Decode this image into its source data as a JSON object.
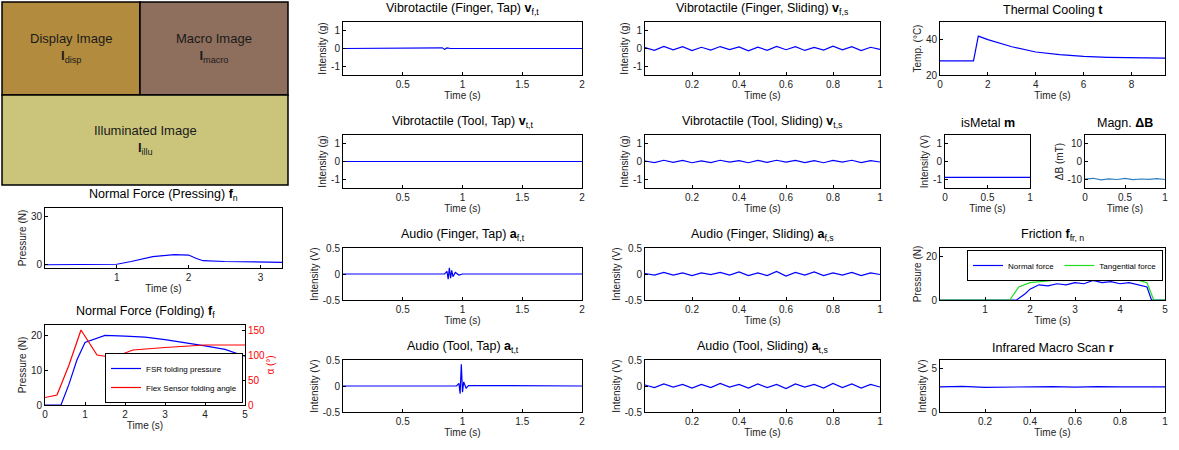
{
  "images": [
    {
      "label": "Display Image",
      "symbol": "I",
      "subscript": "disp",
      "color": "#b38b3e"
    },
    {
      "label": "Macro Image",
      "symbol": "I",
      "subscript": "macro",
      "color": "#8e6e5c"
    },
    {
      "label": "Illuminated Image",
      "symbol": "I",
      "subscript": "illu",
      "color": "#cbc57c"
    }
  ],
  "chart_data": [
    {
      "type": "line",
      "title": "Normal Force (Pressing)",
      "symbol": "f",
      "subscript": "n",
      "x_label": "Time (s)",
      "y_label": "Pressure (N)",
      "xlim": [
        0,
        3.3
      ],
      "xticks": [
        1,
        2,
        3
      ],
      "ylim": [
        -2,
        35
      ],
      "yticks": [
        0,
        30
      ],
      "series": [
        {
          "color": "#0000ff",
          "x": [
            0,
            1,
            1.2,
            1.5,
            1.8,
            2.0,
            2.1,
            2.2,
            2.5,
            3.3
          ],
          "values": [
            0,
            0.3,
            2,
            5,
            6.2,
            6,
            4,
            2.5,
            2,
            1.5
          ]
        }
      ]
    },
    {
      "type": "line",
      "title": "Normal Force (Folding)",
      "symbol": "f",
      "subscript": "f",
      "x_label": "Time (s)",
      "y_label": "Pressure (N)",
      "y2_label": "α (°)",
      "xlim": [
        0,
        5
      ],
      "xticks": [
        0,
        1,
        2,
        3,
        4,
        5
      ],
      "ylim": [
        0,
        23
      ],
      "yticks": [
        0,
        10,
        20
      ],
      "y2lim": [
        0,
        160
      ],
      "y2ticks": [
        0,
        50,
        100,
        150
      ],
      "legend": "bottom right",
      "series": [
        {
          "name": "FSR folding pressure",
          "color": "#0000ff",
          "x": [
            0,
            0.4,
            0.6,
            0.8,
            1.0,
            1.5,
            2.0,
            2.5,
            3.0,
            3.5,
            4.0,
            4.5,
            5.0
          ],
          "values": [
            0,
            0,
            6,
            13,
            18,
            20,
            19.8,
            19.5,
            18.8,
            18,
            17,
            16,
            14
          ]
        },
        {
          "name": "Flex Sensor folding angle",
          "color": "#ff0000",
          "axis": "y2",
          "x": [
            0,
            0.3,
            0.6,
            0.9,
            1.1,
            1.3,
            1.7,
            2.2,
            3.0,
            4.0,
            5.0
          ],
          "values": [
            15,
            20,
            80,
            150,
            125,
            100,
            95,
            110,
            115,
            120,
            120
          ]
        }
      ]
    },
    {
      "type": "line",
      "title": "Vibrotactile (Finger, Tap)",
      "symbol": "v",
      "subscript": "f,t",
      "x_label": "Time (s)",
      "y_label": "Intensity (g)",
      "xlim": [
        0,
        2
      ],
      "xticks": [
        0.5,
        1,
        1.5,
        2
      ],
      "ylim": [
        -1.5,
        1.5
      ],
      "yticks": [
        -1,
        0,
        1
      ],
      "series": [
        {
          "color": "#0000ff",
          "x": [
            0,
            0.8,
            0.83,
            0.85,
            0.87,
            0.9,
            2
          ],
          "values": [
            0,
            0,
            0.04,
            -0.05,
            0.03,
            0,
            0
          ]
        }
      ]
    },
    {
      "type": "line",
      "title": "Vibrotactile (Tool, Tap)",
      "symbol": "v",
      "subscript": "t,t",
      "x_label": "Time (s)",
      "y_label": "Intensity (g)",
      "xlim": [
        0,
        2
      ],
      "xticks": [
        0.5,
        1,
        1.5,
        2
      ],
      "ylim": [
        -1.5,
        1.5
      ],
      "yticks": [
        -1,
        0,
        1
      ],
      "series": [
        {
          "color": "#0000ff",
          "x": [
            0,
            0.95,
            0.97,
            0.99,
            1.01,
            2
          ],
          "values": [
            0,
            0,
            0.02,
            -0.02,
            0.01,
            0
          ]
        }
      ]
    },
    {
      "type": "line",
      "title": "Audio (Finger, Tap)",
      "symbol": "a",
      "subscript": "f,t",
      "x_label": "Time (s)",
      "y_label": "Intensity (V)",
      "xlim": [
        0,
        2
      ],
      "xticks": [
        0.5,
        1,
        1.5,
        2
      ],
      "ylim": [
        -0.5,
        0.5
      ],
      "yticks": [
        -0.5,
        0,
        0.5
      ],
      "series": [
        {
          "color": "#0000ff",
          "x": [
            0,
            0.85,
            0.87,
            0.88,
            0.89,
            0.9,
            0.91,
            0.92,
            0.94,
            0.97,
            1.0,
            2
          ],
          "values": [
            0,
            0,
            0.05,
            -0.1,
            0.12,
            -0.08,
            0.07,
            -0.05,
            0.03,
            -0.02,
            0,
            0
          ]
        }
      ]
    },
    {
      "type": "line",
      "title": "Audio (Tool, Tap)",
      "symbol": "a",
      "subscript": "t,t",
      "x_label": "Time (s)",
      "y_label": "Intensity (V)",
      "xlim": [
        0,
        2
      ],
      "xticks": [
        0.5,
        1,
        1.5,
        2
      ],
      "ylim": [
        -0.5,
        0.5
      ],
      "yticks": [
        -0.5,
        0,
        0.5
      ],
      "series": [
        {
          "color": "#0000ff",
          "x": [
            0,
            0.95,
            0.97,
            0.98,
            0.99,
            1.0,
            1.01,
            1.03,
            1.05,
            2
          ],
          "values": [
            0,
            0,
            0.05,
            -0.15,
            0.42,
            -0.12,
            0.08,
            -0.04,
            0.01,
            0
          ]
        }
      ]
    },
    {
      "type": "line",
      "title": "Vibrotactile (Finger, Sliding)",
      "symbol": "v",
      "subscript": "f,s",
      "x_label": "Time (s)",
      "y_label": "Intensity (g)",
      "xlim": [
        0,
        1
      ],
      "xticks": [
        0.2,
        0.4,
        0.6,
        0.8,
        1
      ],
      "ylim": [
        -1.5,
        1.5
      ],
      "yticks": [
        -1,
        0,
        1
      ],
      "series": [
        {
          "color": "#0000ff",
          "x": [
            0,
            0.04,
            0.08,
            0.12,
            0.16,
            0.2,
            0.24,
            0.28,
            0.32,
            0.36,
            0.4,
            0.44,
            0.48,
            0.52,
            0.56,
            0.6,
            0.64,
            0.68,
            0.72,
            0.76,
            0.8,
            0.84,
            0.88,
            0.92,
            0.96,
            1
          ],
          "values": [
            0.05,
            -0.1,
            0.12,
            -0.08,
            0.1,
            -0.12,
            0.07,
            -0.09,
            0.11,
            -0.06,
            0.09,
            -0.13,
            0.08,
            -0.1,
            0.12,
            -0.07,
            0.1,
            -0.11,
            0.06,
            -0.09,
            0.13,
            -0.08,
            0.1,
            -0.12,
            0.07,
            -0.05
          ]
        }
      ]
    },
    {
      "type": "line",
      "title": "Vibrotactile (Tool, Sliding)",
      "symbol": "v",
      "subscript": "t,s",
      "x_label": "Time (s)",
      "y_label": "Intensity (g)",
      "xlim": [
        0,
        1
      ],
      "xticks": [
        0.2,
        0.4,
        0.6,
        0.8,
        1
      ],
      "ylim": [
        -1.5,
        1.5
      ],
      "yticks": [
        -1,
        0,
        1
      ],
      "series": [
        {
          "color": "#0000ff",
          "x": [
            0,
            0.04,
            0.08,
            0.12,
            0.16,
            0.2,
            0.24,
            0.28,
            0.32,
            0.36,
            0.4,
            0.44,
            0.48,
            0.52,
            0.56,
            0.6,
            0.64,
            0.68,
            0.72,
            0.76,
            0.8,
            0.84,
            0.88,
            0.92,
            0.96,
            1
          ],
          "values": [
            0.03,
            -0.06,
            0.07,
            -0.05,
            0.06,
            -0.07,
            0.04,
            -0.06,
            0.07,
            -0.04,
            0.05,
            -0.07,
            0.06,
            -0.05,
            0.07,
            -0.04,
            0.06,
            -0.06,
            0.05,
            -0.07,
            0.06,
            -0.04,
            0.07,
            -0.06,
            0.05,
            -0.03
          ]
        }
      ]
    },
    {
      "type": "line",
      "title": "Audio (Finger, Sliding)",
      "symbol": "a",
      "subscript": "f,s",
      "x_label": "Time (s)",
      "y_label": "Intensity (V)",
      "xlim": [
        0,
        1
      ],
      "xticks": [
        0.2,
        0.4,
        0.6,
        0.8,
        1
      ],
      "ylim": [
        -0.5,
        0.5
      ],
      "yticks": [
        -0.5,
        0,
        0.5
      ],
      "series": [
        {
          "color": "#0000ff",
          "x": [
            0,
            0.04,
            0.08,
            0.12,
            0.16,
            0.2,
            0.24,
            0.28,
            0.32,
            0.36,
            0.4,
            0.44,
            0.48,
            0.52,
            0.56,
            0.6,
            0.64,
            0.68,
            0.72,
            0.76,
            0.8,
            0.84,
            0.88,
            0.92,
            0.96,
            1
          ],
          "values": [
            0.01,
            -0.02,
            0.03,
            -0.02,
            0.02,
            -0.03,
            0.02,
            -0.01,
            0.03,
            -0.02,
            0.04,
            -0.03,
            0.02,
            -0.03,
            0.05,
            -0.04,
            0.03,
            -0.02,
            0.04,
            -0.03,
            0.02,
            -0.02,
            0.03,
            -0.03,
            0.02,
            -0.01
          ]
        }
      ]
    },
    {
      "type": "line",
      "title": "Audio (Tool, Sliding)",
      "symbol": "a",
      "subscript": "t,s",
      "x_label": "Time (s)",
      "y_label": "Intensity (V)",
      "xlim": [
        0,
        1
      ],
      "xticks": [
        0.2,
        0.4,
        0.6,
        0.8,
        1
      ],
      "ylim": [
        -0.5,
        0.5
      ],
      "yticks": [
        -0.5,
        0,
        0.5
      ],
      "series": [
        {
          "color": "#0000ff",
          "x": [
            0,
            0.04,
            0.08,
            0.12,
            0.16,
            0.2,
            0.24,
            0.28,
            0.32,
            0.36,
            0.4,
            0.44,
            0.48,
            0.52,
            0.56,
            0.6,
            0.64,
            0.68,
            0.72,
            0.76,
            0.8,
            0.84,
            0.88,
            0.92,
            0.96,
            1
          ],
          "values": [
            0.02,
            -0.03,
            0.04,
            -0.02,
            0.03,
            -0.04,
            0.03,
            -0.03,
            0.05,
            -0.02,
            0.03,
            -0.04,
            0.04,
            -0.03,
            0.03,
            -0.05,
            0.04,
            -0.02,
            0.03,
            -0.04,
            0.05,
            -0.03,
            0.04,
            -0.04,
            0.03,
            -0.02
          ]
        }
      ]
    },
    {
      "type": "line",
      "title": "Thermal Cooling",
      "symbol": "t",
      "x_label": "Time (s)",
      "y_label": "Temp. (°C)",
      "xlim": [
        0,
        9.4
      ],
      "xticks": [
        0,
        2,
        4,
        6,
        8
      ],
      "ylim": [
        20,
        50
      ],
      "yticks": [
        20,
        40
      ],
      "series": [
        {
          "color": "#0000ff",
          "x": [
            0,
            1.4,
            1.6,
            2,
            3,
            4,
            5,
            6,
            7,
            9.4
          ],
          "values": [
            28,
            28,
            42,
            40,
            36,
            33,
            31.5,
            30.5,
            30,
            29.5
          ]
        }
      ]
    },
    {
      "type": "line",
      "title": "isMetal",
      "symbol": "m",
      "x_label": "Time (s)",
      "y_label": "Intensity (V)",
      "xlim": [
        0,
        1
      ],
      "xticks": [
        0,
        0.5,
        1
      ],
      "ylim": [
        -1.5,
        1.5
      ],
      "yticks": [
        -1,
        0,
        1
      ],
      "series": [
        {
          "color": "#0000ff",
          "x": [
            0,
            1
          ],
          "values": [
            -0.9,
            -0.9
          ]
        }
      ]
    },
    {
      "type": "line",
      "title": "Magn.",
      "symbol": "ΔB",
      "x_label": "Time (s)",
      "y_label": "ΔB (mT)",
      "xlim": [
        0,
        1
      ],
      "xticks": [
        0,
        0.5,
        1
      ],
      "ylim": [
        -15,
        15
      ],
      "yticks": [
        -10,
        0,
        10
      ],
      "series": [
        {
          "color": "#2f7fc1",
          "x": [
            0,
            0.1,
            0.2,
            0.3,
            0.4,
            0.5,
            0.6,
            0.7,
            0.8,
            0.9,
            1
          ],
          "values": [
            -10,
            -9.5,
            -10.4,
            -9.8,
            -10.2,
            -9.6,
            -10.3,
            -9.9,
            -10.1,
            -9.7,
            -10.2
          ]
        }
      ]
    },
    {
      "type": "line",
      "title": "Friction",
      "symbol": "f",
      "subscript": "fr, n",
      "x_label": "Time (s)",
      "y_label": "Pressure (N)",
      "xlim": [
        0,
        5
      ],
      "xticks": [
        1,
        2,
        3,
        4,
        5
      ],
      "ylim": [
        0,
        24
      ],
      "yticks": [
        0,
        20
      ],
      "legend": "top right",
      "series": [
        {
          "name": "Normal force",
          "color": "#0000ff",
          "x": [
            0,
            1.7,
            1.9,
            2.0,
            2.2,
            2.4,
            2.6,
            2.8,
            3.0,
            3.2,
            3.4,
            3.6,
            3.8,
            4.0,
            4.2,
            4.4,
            4.6,
            4.7,
            5
          ],
          "values": [
            0,
            0,
            3,
            5,
            7,
            6.5,
            7.5,
            7,
            8,
            7.5,
            9,
            8,
            8.5,
            7.5,
            8,
            7,
            6,
            0,
            0
          ]
        },
        {
          "name": "Tangential force",
          "color": "#22dd22",
          "x": [
            0,
            1.55,
            1.75,
            2.0,
            2.5,
            3,
            3.5,
            4,
            4.4,
            4.6,
            4.75,
            5
          ],
          "values": [
            0,
            0,
            6,
            8,
            9,
            9.5,
            9.5,
            9.5,
            9.2,
            8,
            0,
            0
          ]
        }
      ]
    },
    {
      "type": "line",
      "title": "Infrared Macro Scan",
      "symbol": "r",
      "x_label": "Time (s)",
      "y_label": "Intensity (V)",
      "xlim": [
        0,
        1
      ],
      "xticks": [
        0.2,
        0.4,
        0.6,
        0.8,
        1
      ],
      "ylim": [
        0,
        6
      ],
      "yticks": [
        0,
        5
      ],
      "series": [
        {
          "color": "#0000ff",
          "x": [
            0,
            0.1,
            0.2,
            0.3,
            0.4,
            0.5,
            0.6,
            0.7,
            0.8,
            0.9,
            1
          ],
          "values": [
            2.9,
            2.95,
            2.85,
            2.9,
            2.88,
            2.92,
            2.87,
            2.93,
            2.9,
            2.86,
            2.9
          ]
        }
      ]
    }
  ]
}
